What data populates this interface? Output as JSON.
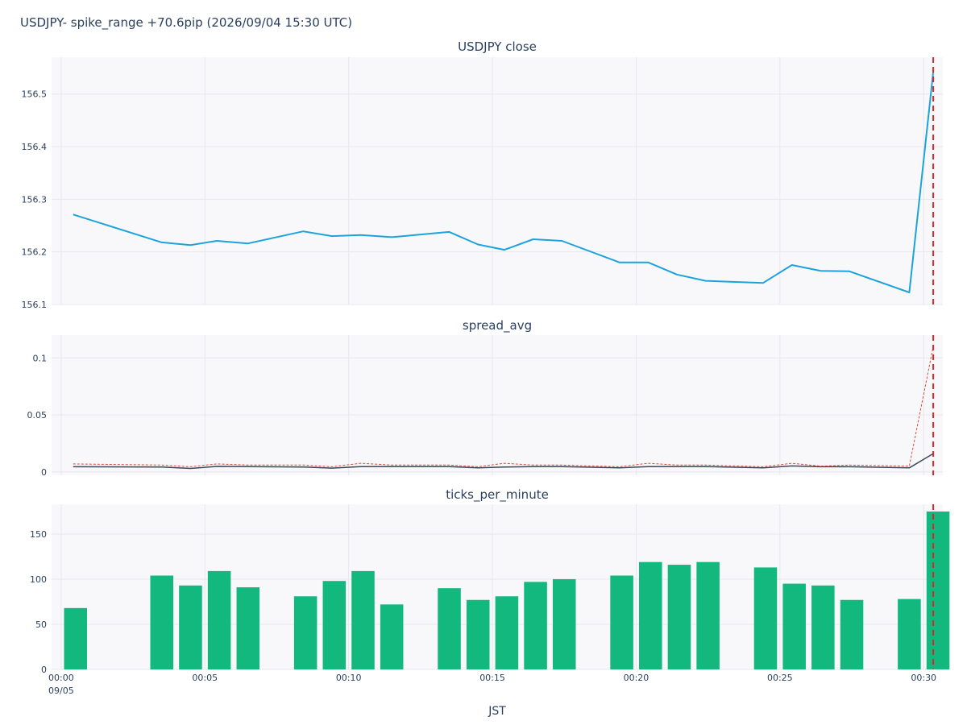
{
  "title": "USDJPY- spike_range +70.6pip (2026/09/04 15:30 UTC)",
  "colors": {
    "close_line": "#1ca3de",
    "spread_line": "#3d4758",
    "spread_dotted": "#e0473c",
    "bars": "#13b87f",
    "marker": "#d62728",
    "plot_bg": "#f8f8fa",
    "grid": "#e6e8ef"
  },
  "marker_time": "00:30:20",
  "x_axis": {
    "title": "JST",
    "range": [
      "23:59:40",
      "00:30:40"
    ],
    "ticks": [
      "00:00",
      "00:05",
      "00:10",
      "00:15",
      "00:20",
      "00:25",
      "00:30"
    ],
    "date_label": "09/05"
  },
  "chart_data": [
    {
      "type": "line",
      "title": "USDJPY close",
      "ylim": [
        156.1,
        156.57
      ],
      "yticks": [
        "156.1",
        "156.2",
        "156.3",
        "156.4",
        "156.5"
      ],
      "series": [
        {
          "x": [
            "00:00:25",
            "00:03:30",
            "00:04:30",
            "00:05:25",
            "00:06:30",
            "00:08:25",
            "00:09:25",
            "00:10:25",
            "00:11:30",
            "00:13:30",
            "00:14:30",
            "00:15:25",
            "00:16:25",
            "00:17:25",
            "00:19:25",
            "00:20:25",
            "00:21:25",
            "00:22:25",
            "00:24:25",
            "00:25:25",
            "00:26:25",
            "00:27:25",
            "00:29:30",
            "00:30:20"
          ],
          "y": [
            156.271,
            156.218,
            156.213,
            156.221,
            156.216,
            156.239,
            156.23,
            156.232,
            156.228,
            156.238,
            156.214,
            156.204,
            156.224,
            156.221,
            156.18,
            156.18,
            156.157,
            156.145,
            156.141,
            156.175,
            156.164,
            156.163,
            156.123,
            156.542
          ]
        }
      ]
    },
    {
      "type": "line",
      "title": "spread_avg",
      "ylim": [
        -0.003,
        0.12
      ],
      "yticks": [
        "0",
        "0.05",
        "0.1"
      ],
      "series": [
        {
          "x": [
            "00:00:25",
            "00:03:30",
            "00:04:30",
            "00:05:25",
            "00:06:30",
            "00:08:25",
            "00:09:25",
            "00:10:25",
            "00:11:30",
            "00:13:30",
            "00:14:30",
            "00:15:25",
            "00:16:25",
            "00:17:25",
            "00:19:25",
            "00:20:25",
            "00:21:25",
            "00:22:25",
            "00:24:25",
            "00:25:25",
            "00:26:25",
            "00:27:25",
            "00:29:30",
            "00:30:20"
          ],
          "y": [
            0.0045,
            0.0042,
            0.003,
            0.0048,
            0.0046,
            0.0043,
            0.0033,
            0.0046,
            0.0046,
            0.0046,
            0.0035,
            0.0042,
            0.0046,
            0.0046,
            0.0035,
            0.0046,
            0.0046,
            0.0046,
            0.0036,
            0.0052,
            0.0045,
            0.0045,
            0.0035,
            0.016
          ]
        },
        {
          "style": "dotted",
          "x": [
            "00:00:25",
            "00:03:30",
            "00:04:30",
            "00:05:25",
            "00:06:30",
            "00:08:25",
            "00:09:25",
            "00:10:25",
            "00:11:30",
            "00:13:30",
            "00:14:30",
            "00:15:25",
            "00:16:25",
            "00:17:25",
            "00:19:25",
            "00:20:25",
            "00:21:25",
            "00:22:25",
            "00:24:25",
            "00:25:25",
            "00:26:25",
            "00:27:25",
            "00:29:30",
            "00:30:20"
          ],
          "y": [
            0.007,
            0.006,
            0.0045,
            0.007,
            0.006,
            0.006,
            0.0045,
            0.0075,
            0.006,
            0.006,
            0.0045,
            0.0075,
            0.006,
            0.006,
            0.0045,
            0.0075,
            0.006,
            0.006,
            0.0045,
            0.0075,
            0.005,
            0.006,
            0.005,
            0.11
          ]
        }
      ]
    },
    {
      "type": "bar",
      "title": "ticks_per_minute",
      "ylim": [
        0,
        183
      ],
      "yticks": [
        "0",
        "50",
        "100",
        "150"
      ],
      "x": [
        "00:00",
        "00:03",
        "00:04",
        "00:05",
        "00:06",
        "00:08",
        "00:09",
        "00:10",
        "00:11",
        "00:13",
        "00:14",
        "00:15",
        "00:16",
        "00:17",
        "00:19",
        "00:20",
        "00:21",
        "00:22",
        "00:24",
        "00:25",
        "00:26",
        "00:27",
        "00:29",
        "00:30"
      ],
      "values": [
        68,
        104,
        93,
        109,
        91,
        81,
        98,
        109,
        72,
        90,
        77,
        81,
        97,
        100,
        104,
        119,
        116,
        119,
        113,
        95,
        93,
        77,
        78,
        175
      ]
    }
  ]
}
